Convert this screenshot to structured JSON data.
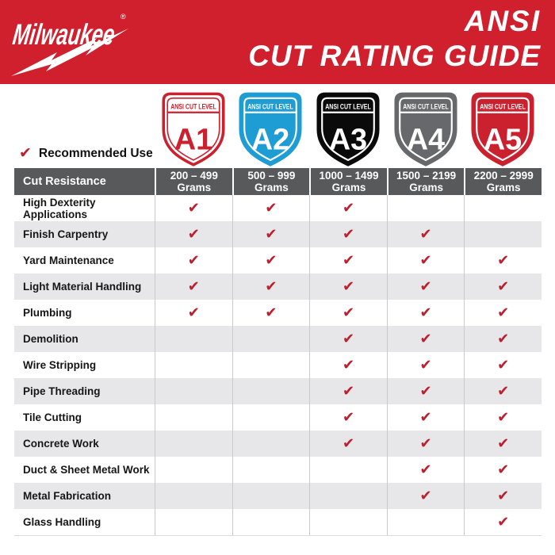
{
  "header": {
    "brand": "Milwaukee",
    "registered_mark": "®",
    "title_line1": "ANSI",
    "title_line2": "CUT RATING GUIDE"
  },
  "legend": {
    "check_glyph": "✔",
    "label": "Recommended Use"
  },
  "shields": {
    "banner_text": "ANSI CUT LEVEL",
    "levels": [
      {
        "label": "A1",
        "fill": "#ffffff",
        "border": "#cb202e",
        "accent": "#cb202e",
        "text": "#cb202e"
      },
      {
        "label": "A2",
        "fill": "#1e9cd4",
        "border": "#1e9cd4",
        "accent": "#ffffff",
        "text": "#ffffff"
      },
      {
        "label": "A3",
        "fill": "#0a0a0a",
        "border": "#0a0a0a",
        "accent": "#ffffff",
        "text": "#ffffff"
      },
      {
        "label": "A4",
        "fill": "#67686b",
        "border": "#67686b",
        "accent": "#ffffff",
        "text": "#ffffff"
      },
      {
        "label": "A5",
        "fill": "#cb202e",
        "border": "#cb202e",
        "accent": "#ffffff",
        "text": "#ffffff"
      }
    ]
  },
  "table": {
    "corner_header": "Cut Resistance",
    "columns": [
      {
        "range": "200 – 499",
        "unit": "Grams"
      },
      {
        "range": "500 – 999",
        "unit": "Grams"
      },
      {
        "range": "1000 – 1499",
        "unit": "Grams"
      },
      {
        "range": "1500 – 2199",
        "unit": "Grams"
      },
      {
        "range": "2200 – 2999",
        "unit": "Grams"
      }
    ],
    "rows": [
      {
        "label": "High Dexterity Applications",
        "checks": [
          true,
          true,
          true,
          false,
          false
        ]
      },
      {
        "label": "Finish Carpentry",
        "checks": [
          true,
          true,
          true,
          true,
          false
        ]
      },
      {
        "label": "Yard Maintenance",
        "checks": [
          true,
          true,
          true,
          true,
          true
        ]
      },
      {
        "label": "Light Material Handling",
        "checks": [
          true,
          true,
          true,
          true,
          true
        ]
      },
      {
        "label": "Plumbing",
        "checks": [
          true,
          true,
          true,
          true,
          true
        ]
      },
      {
        "label": "Demolition",
        "checks": [
          false,
          false,
          true,
          true,
          true
        ]
      },
      {
        "label": "Wire Stripping",
        "checks": [
          false,
          false,
          true,
          true,
          true
        ]
      },
      {
        "label": "Pipe Threading",
        "checks": [
          false,
          false,
          true,
          true,
          true
        ]
      },
      {
        "label": "Tile Cutting",
        "checks": [
          false,
          false,
          true,
          true,
          true
        ]
      },
      {
        "label": "Concrete Work",
        "checks": [
          false,
          false,
          true,
          true,
          true
        ]
      },
      {
        "label": "Duct & Sheet Metal Work",
        "checks": [
          false,
          false,
          false,
          true,
          true
        ]
      },
      {
        "label": "Metal Fabrication",
        "checks": [
          false,
          false,
          false,
          true,
          true
        ]
      },
      {
        "label": "Glass Handling",
        "checks": [
          false,
          false,
          false,
          false,
          true
        ]
      }
    ]
  },
  "colors": {
    "banner_red": "#d0202e",
    "check_red": "#be1e2d",
    "table_header_gray": "#58595b",
    "row_alt_gray": "#e7e7e9",
    "grid_line": "#c9cacb"
  },
  "chart_data": {
    "type": "table",
    "title": "ANSI CUT RATING GUIDE",
    "columns": [
      "Cut Resistance",
      "A1: 200 – 499 Grams",
      "A2: 500 – 999 Grams",
      "A3: 1000 – 1499 Grams",
      "A4: 1500 – 2199 Grams",
      "A5: 2200 – 2999 Grams"
    ],
    "rows": [
      [
        "High Dexterity Applications",
        true,
        true,
        true,
        false,
        false
      ],
      [
        "Finish Carpentry",
        true,
        true,
        true,
        true,
        false
      ],
      [
        "Yard Maintenance",
        true,
        true,
        true,
        true,
        true
      ],
      [
        "Light Material Handling",
        true,
        true,
        true,
        true,
        true
      ],
      [
        "Plumbing",
        true,
        true,
        true,
        true,
        true
      ],
      [
        "Demolition",
        false,
        false,
        true,
        true,
        true
      ],
      [
        "Wire Stripping",
        false,
        false,
        true,
        true,
        true
      ],
      [
        "Pipe Threading",
        false,
        false,
        true,
        true,
        true
      ],
      [
        "Tile Cutting",
        false,
        false,
        true,
        true,
        true
      ],
      [
        "Concrete Work",
        false,
        false,
        true,
        true,
        true
      ],
      [
        "Duct & Sheet Metal Work",
        false,
        false,
        false,
        true,
        true
      ],
      [
        "Metal Fabrication",
        false,
        false,
        false,
        true,
        true
      ],
      [
        "Glass Handling",
        false,
        false,
        false,
        false,
        true
      ]
    ],
    "legend_note": "check mark = Recommended Use"
  }
}
